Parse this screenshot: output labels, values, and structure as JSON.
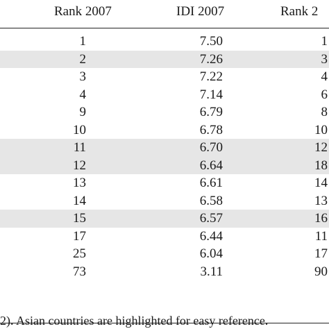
{
  "table": {
    "headers": {
      "rank2007": "Rank 2007",
      "idi2007": "IDI 2007",
      "rank2": "Rank 2"
    },
    "rows": [
      {
        "rank2007": "1",
        "idi2007": "7.50",
        "rank2": "1",
        "highlight": false
      },
      {
        "rank2007": "2",
        "idi2007": "7.26",
        "rank2": "3",
        "highlight": true
      },
      {
        "rank2007": "3",
        "idi2007": "7.22",
        "rank2": "4",
        "highlight": false
      },
      {
        "rank2007": "4",
        "idi2007": "7.14",
        "rank2": "6",
        "highlight": false
      },
      {
        "rank2007": "9",
        "idi2007": "6.79",
        "rank2": "8",
        "highlight": false
      },
      {
        "rank2007": "10",
        "idi2007": "6.78",
        "rank2": "10",
        "highlight": false
      },
      {
        "rank2007": "11",
        "idi2007": "6.70",
        "rank2": "12",
        "highlight": true
      },
      {
        "rank2007": "12",
        "idi2007": "6.64",
        "rank2": "18",
        "highlight": true
      },
      {
        "rank2007": "13",
        "idi2007": "6.61",
        "rank2": "14",
        "highlight": false
      },
      {
        "rank2007": "14",
        "idi2007": "6.58",
        "rank2": "13",
        "highlight": false
      },
      {
        "rank2007": "15",
        "idi2007": "6.57",
        "rank2": "16",
        "highlight": true
      },
      {
        "rank2007": "17",
        "idi2007": "6.44",
        "rank2": "11",
        "highlight": false
      },
      {
        "rank2007": "25",
        "idi2007": "6.04",
        "rank2": "17",
        "highlight": false
      },
      {
        "rank2007": "73",
        "idi2007": "3.11",
        "rank2": "90",
        "highlight": false
      }
    ],
    "highlight_color": "#e6e6e6"
  },
  "footnote": "2). Asian countries are highlighted for easy reference."
}
